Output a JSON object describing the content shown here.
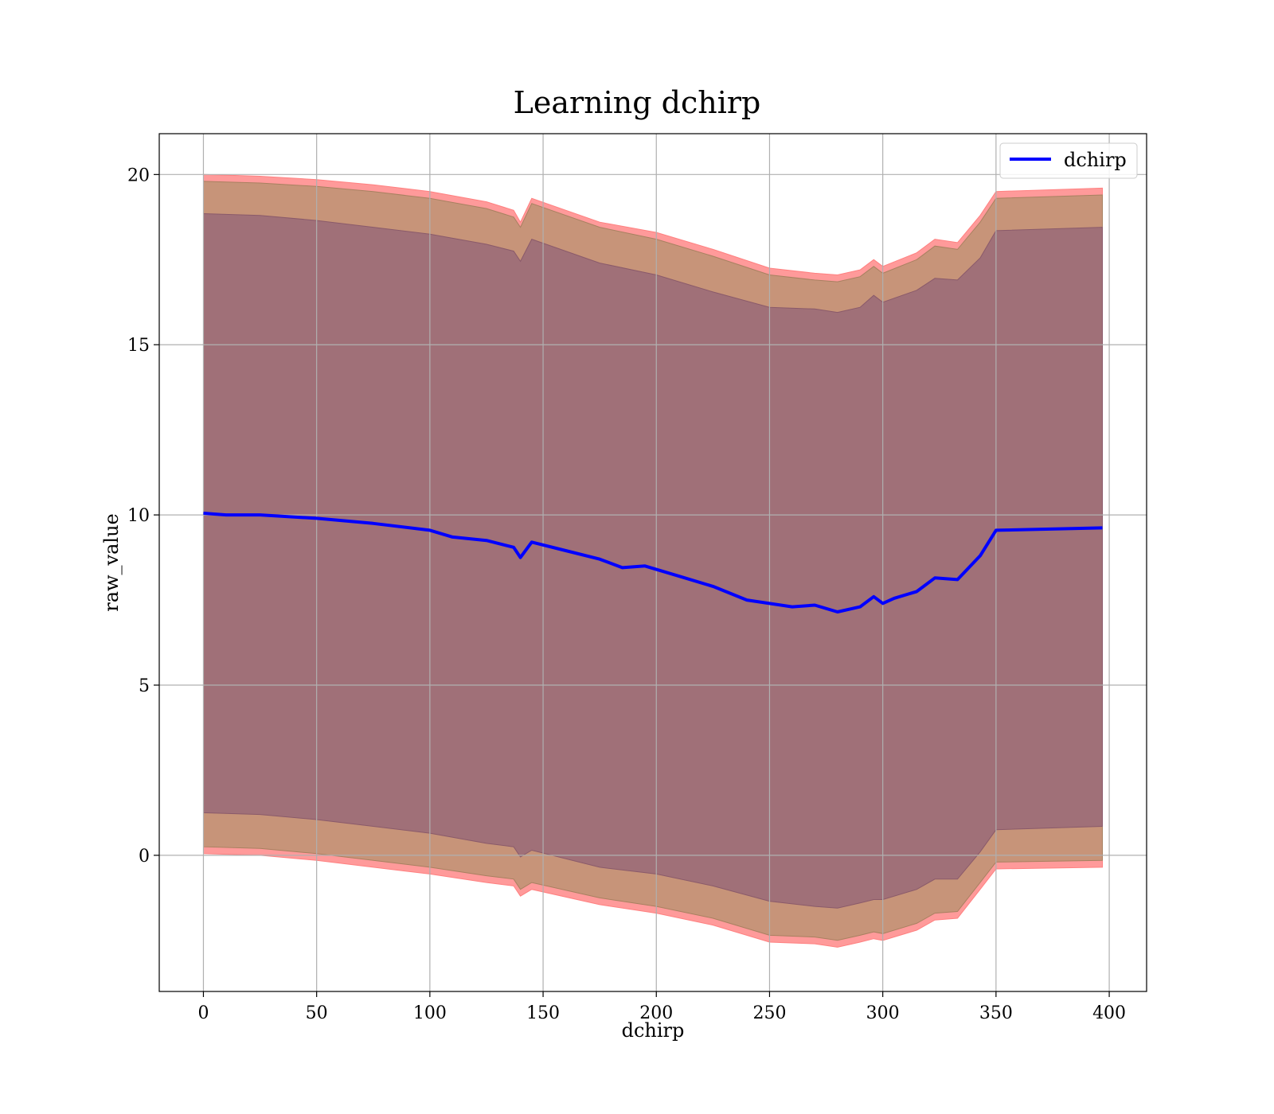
{
  "chart_data": {
    "type": "line",
    "title": "Learning dchirp",
    "xlabel": "dchirp",
    "ylabel": "raw_value",
    "xlim": [
      -19.5,
      416.5
    ],
    "ylim": [
      -4.0,
      21.2
    ],
    "xticks": [
      "0",
      "50",
      "100",
      "150",
      "200",
      "250",
      "300",
      "350",
      "400"
    ],
    "yticks": [
      "0",
      "5",
      "10",
      "15",
      "20"
    ],
    "grid": true,
    "legend_position": "top-right",
    "colors": {
      "line": "#0000ff",
      "band_outer": "#ff9a9a",
      "band_middle": "#c79479",
      "band_inner": "#a07078"
    },
    "series": [
      {
        "name": "dchirp",
        "x": [
          0,
          10,
          25,
          50,
          75,
          100,
          110,
          125,
          137,
          140,
          145,
          160,
          175,
          185,
          195,
          210,
          225,
          240,
          260,
          270,
          280,
          290,
          296,
          300,
          305,
          315,
          323,
          333,
          343,
          350,
          397
        ],
        "values": [
          10.05,
          10.0,
          10.0,
          9.9,
          9.75,
          9.55,
          9.35,
          9.25,
          9.05,
          8.75,
          9.2,
          8.95,
          8.7,
          8.45,
          8.5,
          8.2,
          7.9,
          7.5,
          7.3,
          7.35,
          7.15,
          7.3,
          7.6,
          7.4,
          7.55,
          7.75,
          8.15,
          8.1,
          8.8,
          9.55,
          9.62
        ]
      }
    ],
    "bands": [
      {
        "layer": "outer",
        "x": [
          0,
          25,
          50,
          75,
          100,
          125,
          137,
          140,
          145,
          175,
          200,
          225,
          250,
          270,
          280,
          290,
          296,
          300,
          315,
          323,
          333,
          343,
          350,
          397
        ],
        "upper": [
          20.0,
          19.95,
          19.85,
          19.7,
          19.5,
          19.2,
          18.95,
          18.6,
          19.3,
          18.6,
          18.3,
          17.8,
          17.25,
          17.1,
          17.05,
          17.2,
          17.5,
          17.3,
          17.7,
          18.1,
          18.0,
          18.8,
          19.5,
          19.6
        ],
        "lower": [
          0.05,
          0.0,
          -0.15,
          -0.35,
          -0.55,
          -0.8,
          -0.9,
          -1.2,
          -1.0,
          -1.45,
          -1.7,
          -2.05,
          -2.55,
          -2.6,
          -2.7,
          -2.55,
          -2.45,
          -2.5,
          -2.2,
          -1.9,
          -1.85,
          -1.0,
          -0.4,
          -0.35
        ]
      },
      {
        "layer": "middle",
        "x": [
          0,
          25,
          50,
          75,
          100,
          125,
          137,
          140,
          145,
          175,
          200,
          225,
          250,
          270,
          280,
          290,
          296,
          300,
          315,
          323,
          333,
          343,
          350,
          397
        ],
        "upper": [
          19.8,
          19.75,
          19.65,
          19.5,
          19.3,
          19.0,
          18.75,
          18.45,
          19.15,
          18.45,
          18.1,
          17.6,
          17.05,
          16.9,
          16.85,
          17.0,
          17.3,
          17.1,
          17.5,
          17.9,
          17.8,
          18.6,
          19.3,
          19.4
        ],
        "lower": [
          0.25,
          0.2,
          0.05,
          -0.15,
          -0.35,
          -0.6,
          -0.7,
          -1.0,
          -0.8,
          -1.25,
          -1.5,
          -1.85,
          -2.35,
          -2.4,
          -2.5,
          -2.35,
          -2.25,
          -2.3,
          -2.0,
          -1.7,
          -1.65,
          -0.8,
          -0.2,
          -0.15
        ]
      },
      {
        "layer": "inner",
        "x": [
          0,
          25,
          50,
          75,
          100,
          125,
          137,
          140,
          145,
          175,
          200,
          225,
          250,
          270,
          280,
          290,
          296,
          300,
          315,
          323,
          333,
          343,
          350,
          397
        ],
        "upper": [
          18.85,
          18.8,
          18.65,
          18.45,
          18.25,
          17.95,
          17.75,
          17.45,
          18.1,
          17.4,
          17.05,
          16.55,
          16.1,
          16.05,
          15.95,
          16.1,
          16.45,
          16.25,
          16.6,
          16.95,
          16.9,
          17.55,
          18.35,
          18.45
        ],
        "lower": [
          1.25,
          1.2,
          1.05,
          0.85,
          0.65,
          0.35,
          0.25,
          -0.05,
          0.15,
          -0.35,
          -0.55,
          -0.9,
          -1.35,
          -1.5,
          -1.55,
          -1.4,
          -1.3,
          -1.3,
          -1.0,
          -0.7,
          -0.7,
          0.1,
          0.75,
          0.85
        ]
      }
    ]
  }
}
